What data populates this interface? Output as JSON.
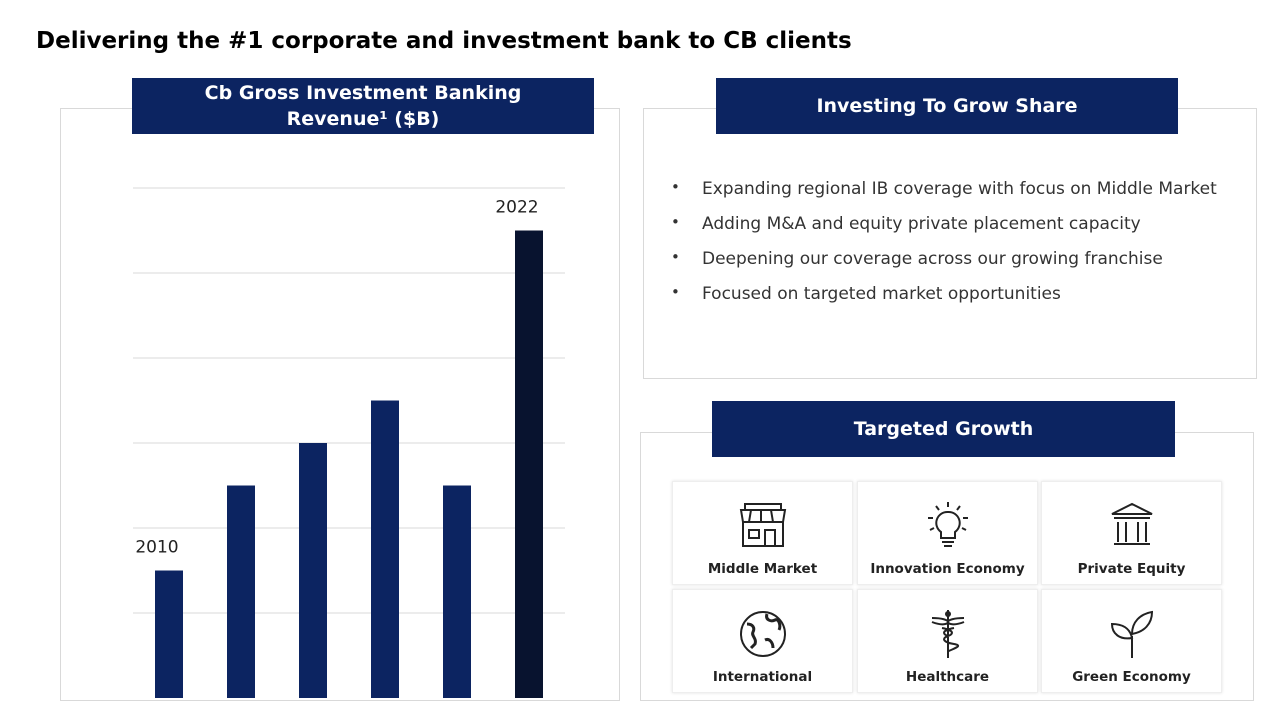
{
  "title": "Delivering the #1 corporate and investment bank to CB clients",
  "chart_data": {
    "type": "bar",
    "title": "Cb Gross Investment Banking Revenue¹ ($B)",
    "categories": [
      "2010",
      null,
      null,
      null,
      null,
      "2022"
    ],
    "values": [
      1.5,
      2.5,
      3,
      3.5,
      2.5,
      5.5
    ],
    "colors": [
      "#0c2461",
      "#0c2461",
      "#0c2461",
      "#0c2461",
      "#0c2461",
      "#08132f"
    ],
    "ylim": [
      0,
      6
    ],
    "yticks": [
      1,
      2,
      3,
      4,
      5,
      6
    ],
    "grid": true
  },
  "investing": {
    "title": "Investing To Grow Share",
    "bullets": [
      "Expanding regional IB coverage with focus on Middle Market",
      "Adding M&A and equity private placement capacity",
      "Deepening our coverage across our growing franchise",
      "Focused on targeted market opportunities"
    ]
  },
  "growth": {
    "title": "Targeted Growth",
    "items": [
      "Middle Market",
      "Innovation Economy",
      "Private Equity",
      "International",
      "Healthcare",
      "Green Economy"
    ]
  }
}
